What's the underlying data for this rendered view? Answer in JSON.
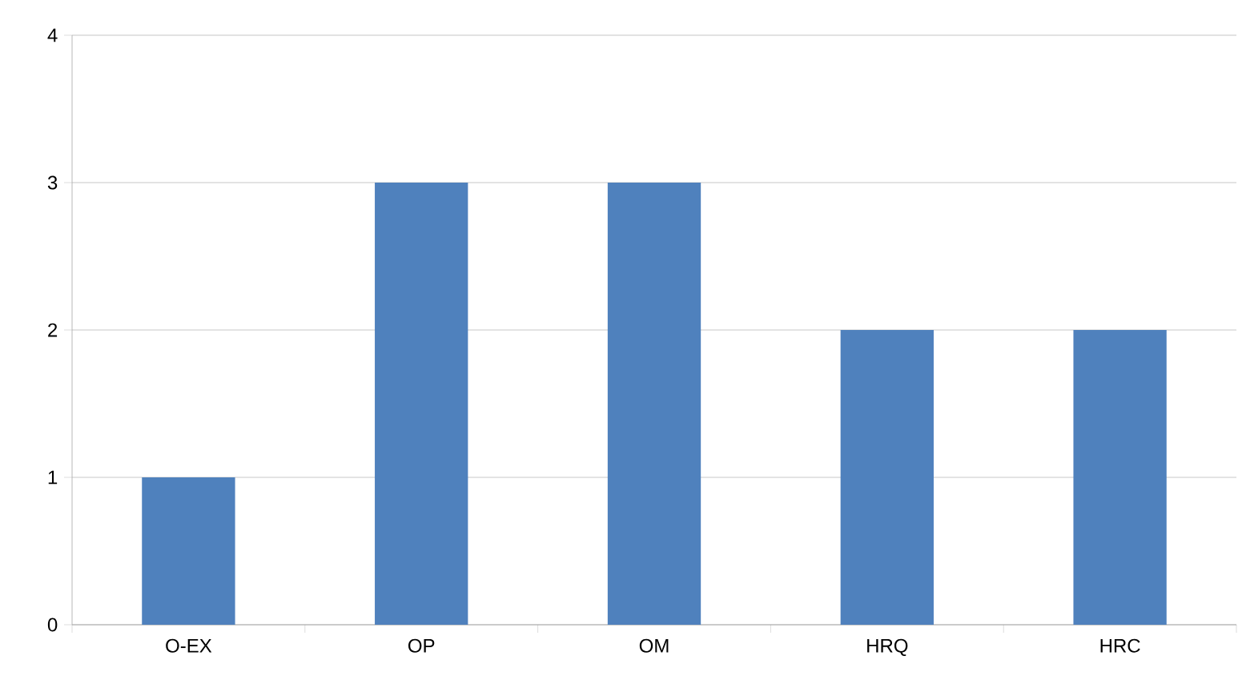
{
  "chart_data": {
    "type": "bar",
    "categories": [
      "O-EX",
      "OP",
      "OM",
      "HRQ",
      "HRC"
    ],
    "values": [
      1,
      3,
      3,
      2,
      2
    ],
    "color": "#4f81bd",
    "ylim": [
      0,
      4
    ],
    "yticks": [
      0,
      1,
      2,
      3,
      4
    ],
    "grid": "y"
  }
}
